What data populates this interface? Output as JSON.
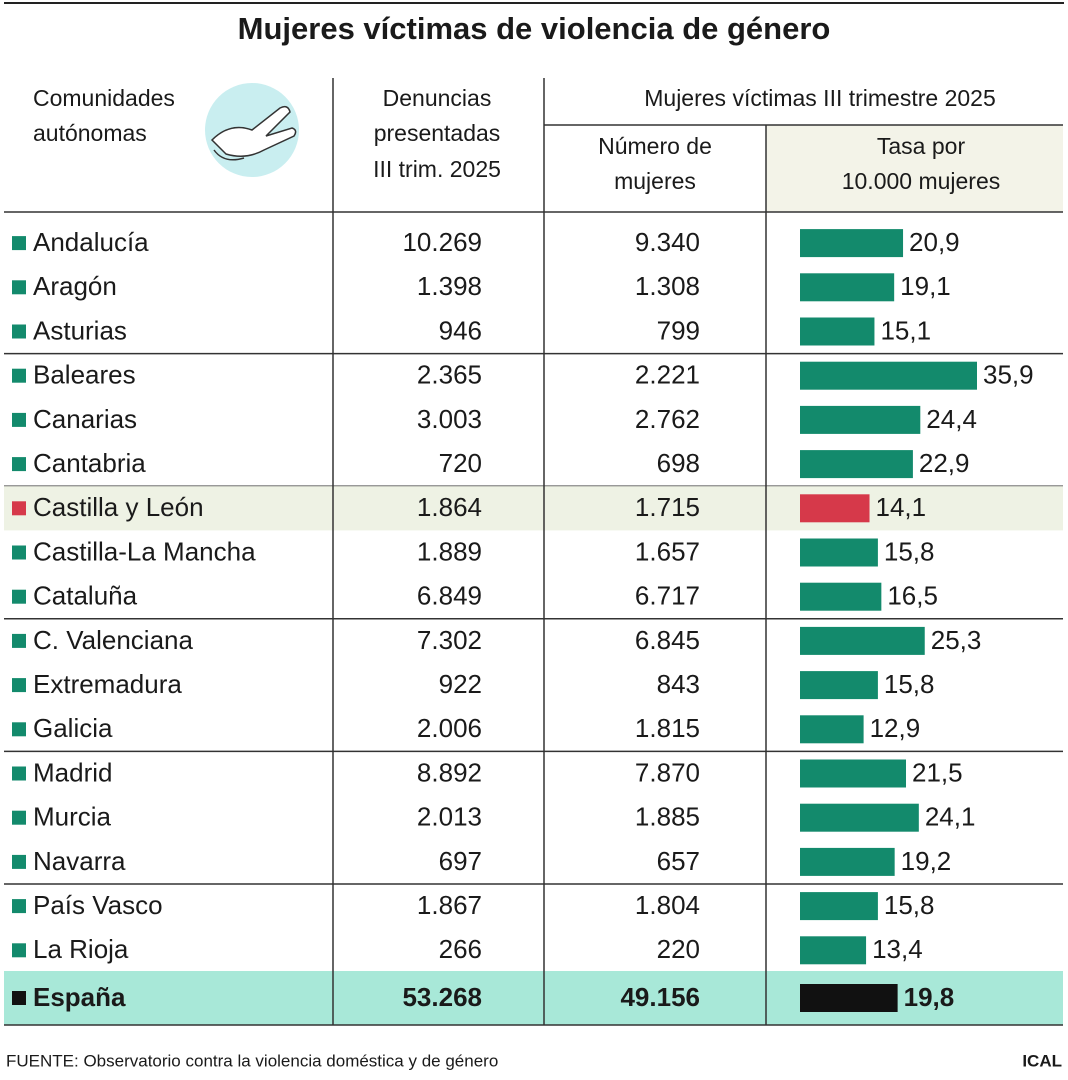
{
  "header": {
    "title": "Mujeres víctimas de violencia de género"
  },
  "table": {
    "column_region": [
      "Comunidades",
      "autónomas"
    ],
    "column_complaints": [
      "Denuncias",
      "presentadas",
      "III trim. 2025"
    ],
    "group_header": "Mujeres víctimas III trimestre 2025",
    "column_women": [
      "Número de",
      "mujeres"
    ],
    "column_rate": [
      "Tasa por",
      "10.000 mujeres"
    ],
    "rows": [
      {
        "name": "Andalucía",
        "complaints": "10.269",
        "women": "9.340",
        "rate": 20.9,
        "rate_label": "20,9",
        "color": "#138a6c"
      },
      {
        "name": "Aragón",
        "complaints": "1.398",
        "women": "1.308",
        "rate": 19.1,
        "rate_label": "19,1",
        "color": "#138a6c"
      },
      {
        "name": "Asturias",
        "complaints": "946",
        "women": "799",
        "rate": 15.1,
        "rate_label": "15,1",
        "color": "#138a6c"
      },
      {
        "name": "Baleares",
        "complaints": "2.365",
        "women": "2.221",
        "rate": 35.9,
        "rate_label": "35,9",
        "color": "#138a6c"
      },
      {
        "name": "Canarias",
        "complaints": "3.003",
        "women": "2.762",
        "rate": 24.4,
        "rate_label": "24,4",
        "color": "#138a6c"
      },
      {
        "name": "Cantabria",
        "complaints": "720",
        "women": "698",
        "rate": 22.9,
        "rate_label": "22,9",
        "color": "#138a6c"
      },
      {
        "name": "Castilla y León",
        "complaints": "1.864",
        "women": "1.715",
        "rate": 14.1,
        "rate_label": "14,1",
        "color": "#d6394a",
        "background": "#eef2e4"
      },
      {
        "name": "Castilla-La Mancha",
        "complaints": "1.889",
        "women": "1.657",
        "rate": 15.8,
        "rate_label": "15,8",
        "color": "#138a6c"
      },
      {
        "name": "Cataluña",
        "complaints": "6.849",
        "women": "6.717",
        "rate": 16.5,
        "rate_label": "16,5",
        "color": "#138a6c"
      },
      {
        "name": "C. Valenciana",
        "complaints": "7.302",
        "women": "6.845",
        "rate": 25.3,
        "rate_label": "25,3",
        "color": "#138a6c"
      },
      {
        "name": "Extremadura",
        "complaints": "922",
        "women": "843",
        "rate": 15.8,
        "rate_label": "15,8",
        "color": "#138a6c"
      },
      {
        "name": "Galicia",
        "complaints": "2.006",
        "women": "1.815",
        "rate": 12.9,
        "rate_label": "12,9",
        "color": "#138a6c"
      },
      {
        "name": "Madrid",
        "complaints": "8.892",
        "women": "7.870",
        "rate": 21.5,
        "rate_label": "21,5",
        "color": "#138a6c"
      },
      {
        "name": "Murcia",
        "complaints": "2.013",
        "women": "1.885",
        "rate": 24.1,
        "rate_label": "24,1",
        "color": "#138a6c"
      },
      {
        "name": "Navarra",
        "complaints": "697",
        "women": "657",
        "rate": 19.2,
        "rate_label": "19,2",
        "color": "#138a6c"
      },
      {
        "name": "País Vasco",
        "complaints": "1.867",
        "women": "1.804",
        "rate": 15.8,
        "rate_label": "15,8",
        "color": "#138a6c"
      },
      {
        "name": "La Rioja",
        "complaints": "266",
        "women": "220",
        "rate": 13.4,
        "rate_label": "13,4",
        "color": "#138a6c"
      },
      {
        "name": "España",
        "complaints": "53.268",
        "women": "49.156",
        "rate": 19.8,
        "rate_label": "19,8",
        "color": "#111111",
        "background": "#a8e8d8",
        "bold": true
      }
    ]
  },
  "footer": {
    "source": "FUENTE: Observatorio contra la violencia doméstica y de género",
    "credit": "ICAL"
  }
}
